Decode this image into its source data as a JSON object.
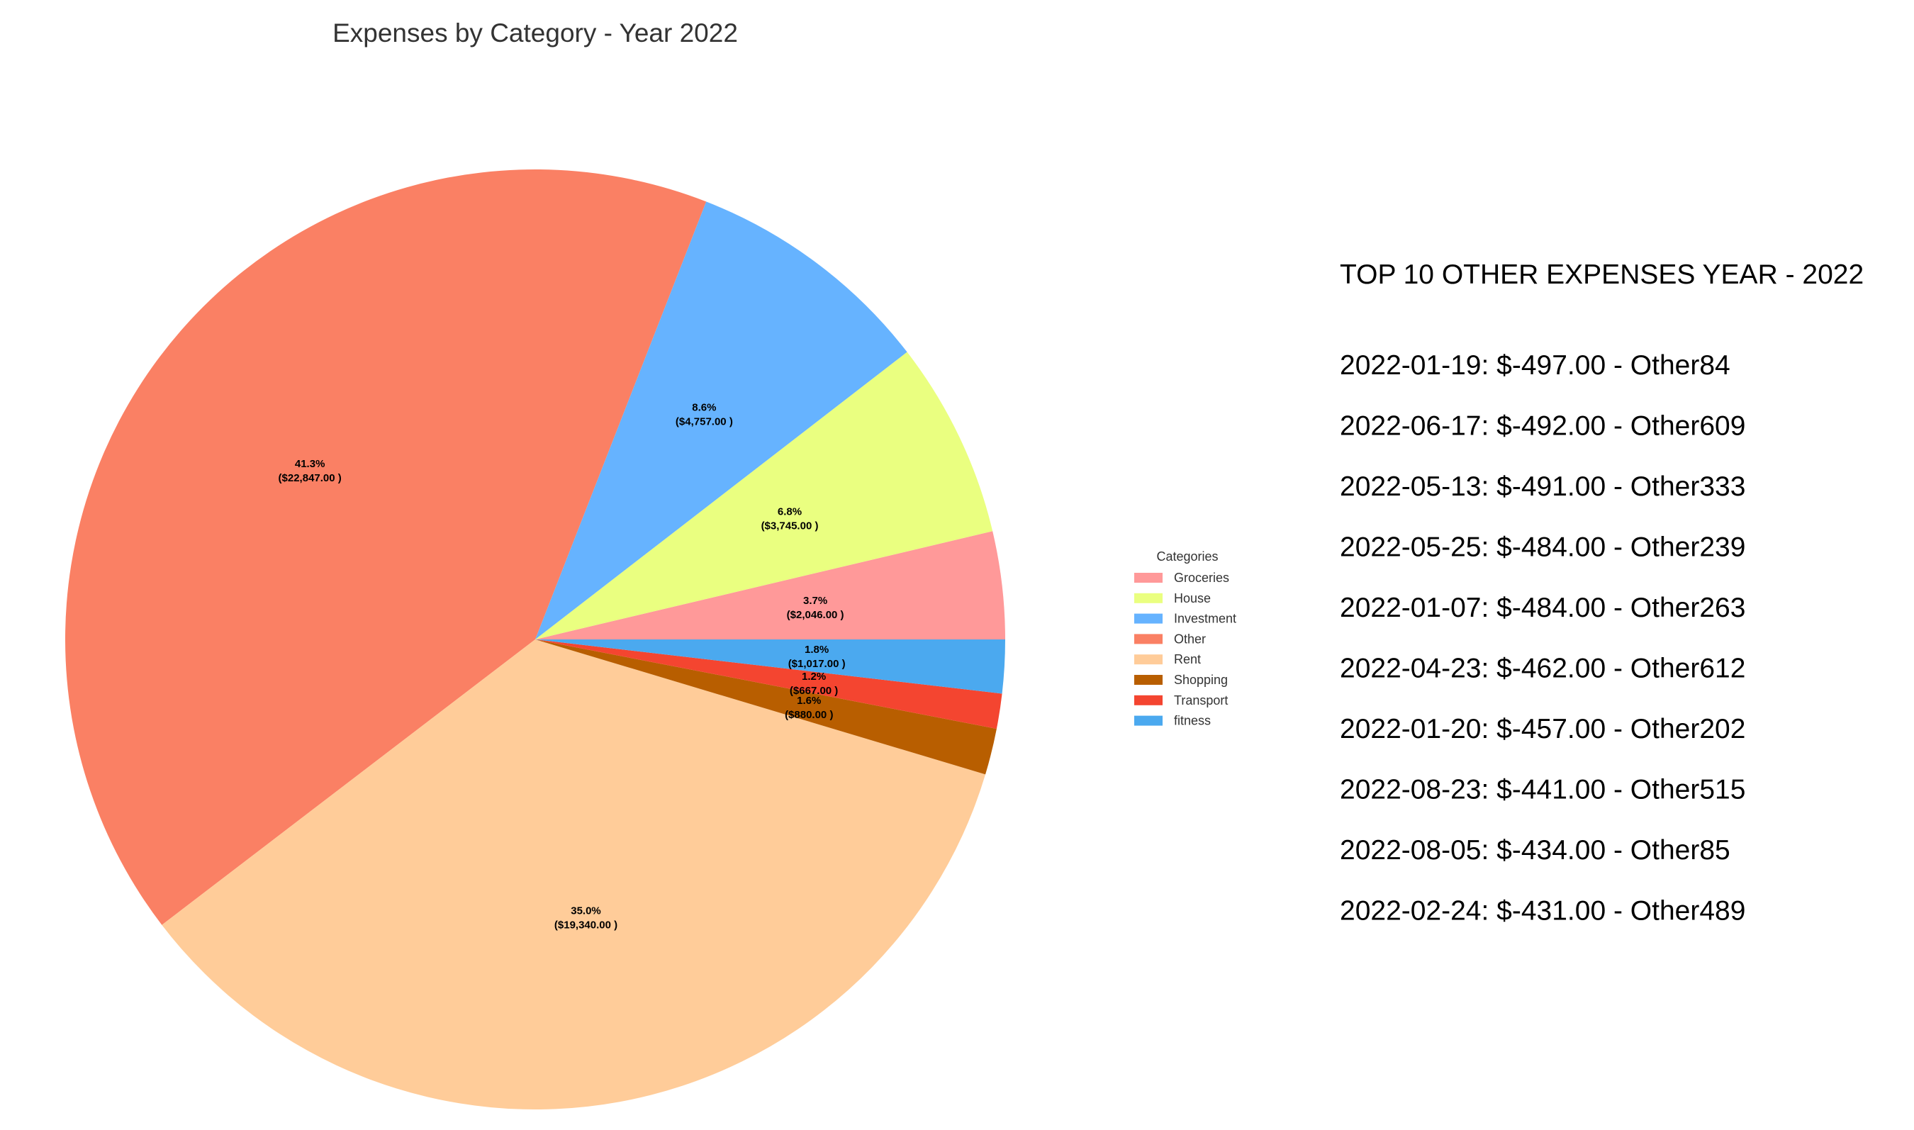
{
  "chart_data": {
    "type": "pie",
    "title": "Expenses by Category - Year 2022",
    "categories": [
      "Groceries",
      "House",
      "Investment",
      "Other",
      "Rent",
      "Shopping",
      "Transport",
      "fitness"
    ],
    "values": [
      2046,
      3745,
      4757,
      22847,
      19340,
      880,
      667,
      1017
    ],
    "percent_labels": [
      "3.7%",
      "6.8%",
      "8.6%",
      "41.3%",
      "35.0%",
      "1.6%",
      "1.2%",
      "1.8%"
    ],
    "value_labels": [
      "($2,046.00 )",
      "($3,745.00 )",
      "($4,757.00 )",
      "($22,847.00 )",
      "($19,340.00 )",
      "($880.00 )",
      "($667.00 )",
      "($1,017.00 )"
    ],
    "colors": [
      "#ff9999",
      "#eaff80",
      "#66b3ff",
      "#fa8064",
      "#ffcc99",
      "#b85e00",
      "#f44530",
      "#4ba9ef"
    ],
    "legend": {
      "title": "Categories",
      "placement": "center-right"
    }
  },
  "side_panel": {
    "heading": "TOP 10 OTHER EXPENSES YEAR - 2022",
    "items": [
      "2022-01-19: $-497.00 - Other84",
      "2022-06-17: $-492.00 - Other609",
      "2022-05-13: $-491.00 - Other333",
      "2022-05-25: $-484.00 - Other239",
      "2022-01-07: $-484.00 - Other263",
      "2022-04-23: $-462.00 - Other612",
      "2022-01-20: $-457.00 - Other202",
      "2022-08-23: $-441.00 - Other515",
      "2022-08-05: $-434.00 - Other85",
      "2022-02-24: $-431.00 - Other489"
    ]
  }
}
